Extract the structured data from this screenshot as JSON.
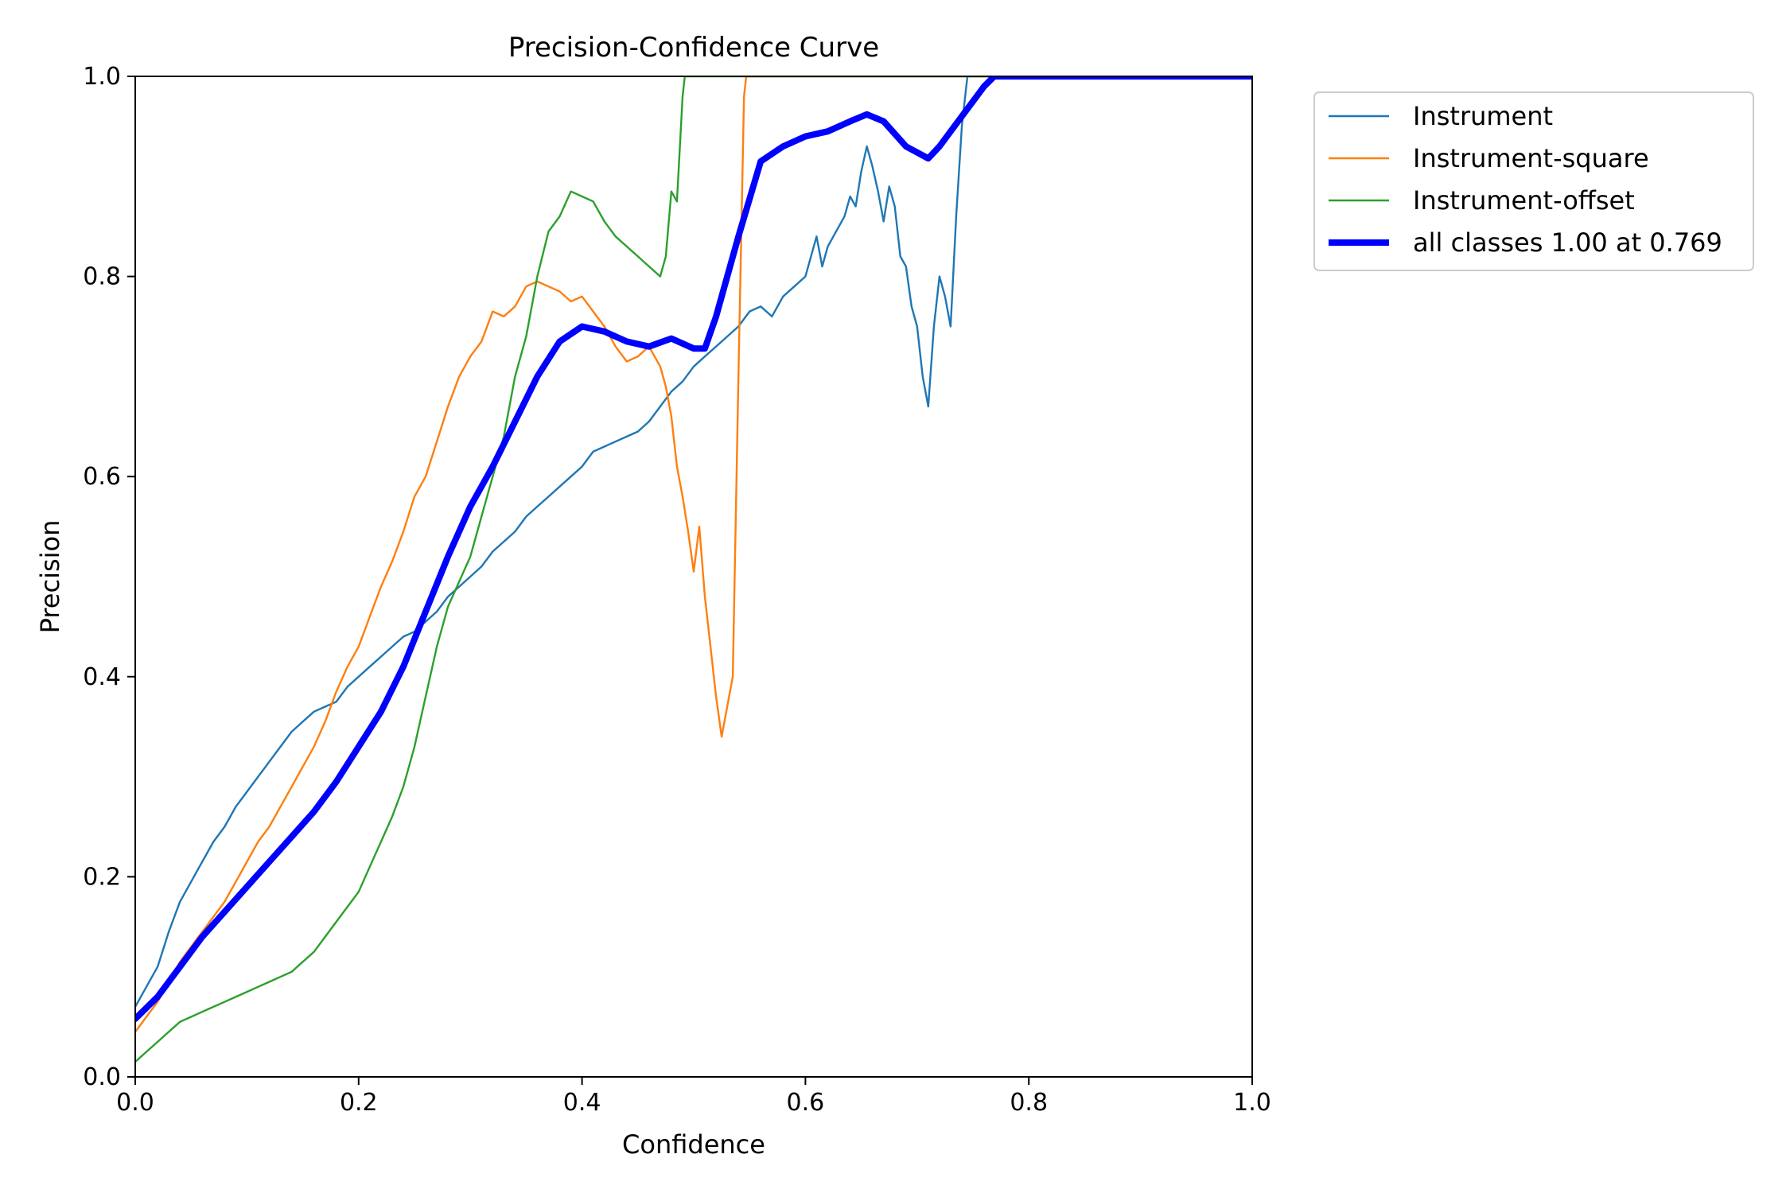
{
  "chart_data": {
    "type": "line",
    "title": "Precision-Confidence Curve",
    "xlabel": "Confidence",
    "ylabel": "Precision",
    "xlim": [
      0.0,
      1.0
    ],
    "ylim": [
      0.0,
      1.0
    ],
    "x_ticks": [
      "0.0",
      "0.2",
      "0.4",
      "0.6",
      "0.8",
      "1.0"
    ],
    "y_ticks": [
      "0.0",
      "0.2",
      "0.4",
      "0.6",
      "0.8",
      "1.0"
    ],
    "grid": false,
    "legend_position": "outside-right-top",
    "series": [
      {
        "name": "Instrument",
        "color": "#1f77b4",
        "width": "thin",
        "points": [
          [
            0.0,
            0.07
          ],
          [
            0.01,
            0.09
          ],
          [
            0.02,
            0.11
          ],
          [
            0.03,
            0.145
          ],
          [
            0.04,
            0.175
          ],
          [
            0.05,
            0.195
          ],
          [
            0.06,
            0.215
          ],
          [
            0.07,
            0.235
          ],
          [
            0.08,
            0.25
          ],
          [
            0.09,
            0.27
          ],
          [
            0.1,
            0.285
          ],
          [
            0.11,
            0.3
          ],
          [
            0.12,
            0.315
          ],
          [
            0.13,
            0.33
          ],
          [
            0.14,
            0.345
          ],
          [
            0.15,
            0.355
          ],
          [
            0.16,
            0.365
          ],
          [
            0.17,
            0.37
          ],
          [
            0.18,
            0.375
          ],
          [
            0.19,
            0.39
          ],
          [
            0.2,
            0.4
          ],
          [
            0.21,
            0.41
          ],
          [
            0.22,
            0.42
          ],
          [
            0.23,
            0.43
          ],
          [
            0.24,
            0.44
          ],
          [
            0.25,
            0.445
          ],
          [
            0.26,
            0.455
          ],
          [
            0.27,
            0.465
          ],
          [
            0.28,
            0.48
          ],
          [
            0.29,
            0.49
          ],
          [
            0.3,
            0.5
          ],
          [
            0.31,
            0.51
          ],
          [
            0.32,
            0.525
          ],
          [
            0.33,
            0.535
          ],
          [
            0.34,
            0.545
          ],
          [
            0.35,
            0.56
          ],
          [
            0.36,
            0.57
          ],
          [
            0.37,
            0.58
          ],
          [
            0.38,
            0.59
          ],
          [
            0.39,
            0.6
          ],
          [
            0.4,
            0.61
          ],
          [
            0.41,
            0.625
          ],
          [
            0.42,
            0.63
          ],
          [
            0.43,
            0.635
          ],
          [
            0.44,
            0.64
          ],
          [
            0.45,
            0.645
          ],
          [
            0.46,
            0.655
          ],
          [
            0.47,
            0.67
          ],
          [
            0.48,
            0.685
          ],
          [
            0.49,
            0.695
          ],
          [
            0.5,
            0.71
          ],
          [
            0.51,
            0.72
          ],
          [
            0.52,
            0.73
          ],
          [
            0.53,
            0.74
          ],
          [
            0.54,
            0.75
          ],
          [
            0.55,
            0.765
          ],
          [
            0.56,
            0.77
          ],
          [
            0.57,
            0.76
          ],
          [
            0.58,
            0.78
          ],
          [
            0.59,
            0.79
          ],
          [
            0.6,
            0.8
          ],
          [
            0.605,
            0.82
          ],
          [
            0.61,
            0.84
          ],
          [
            0.615,
            0.81
          ],
          [
            0.62,
            0.83
          ],
          [
            0.63,
            0.85
          ],
          [
            0.635,
            0.86
          ],
          [
            0.64,
            0.88
          ],
          [
            0.645,
            0.87
          ],
          [
            0.65,
            0.905
          ],
          [
            0.655,
            0.93
          ],
          [
            0.66,
            0.91
          ],
          [
            0.665,
            0.885
          ],
          [
            0.67,
            0.855
          ],
          [
            0.675,
            0.89
          ],
          [
            0.68,
            0.87
          ],
          [
            0.685,
            0.82
          ],
          [
            0.69,
            0.81
          ],
          [
            0.695,
            0.77
          ],
          [
            0.7,
            0.75
          ],
          [
            0.705,
            0.7
          ],
          [
            0.71,
            0.67
          ],
          [
            0.715,
            0.75
          ],
          [
            0.72,
            0.8
          ],
          [
            0.725,
            0.78
          ],
          [
            0.73,
            0.75
          ],
          [
            0.735,
            0.86
          ],
          [
            0.74,
            0.95
          ],
          [
            0.745,
            1.0
          ],
          [
            1.0,
            1.0
          ]
        ]
      },
      {
        "name": "Instrument-square",
        "color": "#ff7f0e",
        "width": "thin",
        "points": [
          [
            0.0,
            0.045
          ],
          [
            0.01,
            0.06
          ],
          [
            0.02,
            0.075
          ],
          [
            0.03,
            0.095
          ],
          [
            0.04,
            0.115
          ],
          [
            0.05,
            0.13
          ],
          [
            0.06,
            0.145
          ],
          [
            0.07,
            0.16
          ],
          [
            0.08,
            0.175
          ],
          [
            0.09,
            0.195
          ],
          [
            0.1,
            0.215
          ],
          [
            0.11,
            0.235
          ],
          [
            0.12,
            0.25
          ],
          [
            0.13,
            0.27
          ],
          [
            0.14,
            0.29
          ],
          [
            0.15,
            0.31
          ],
          [
            0.16,
            0.33
          ],
          [
            0.17,
            0.355
          ],
          [
            0.18,
            0.385
          ],
          [
            0.19,
            0.41
          ],
          [
            0.2,
            0.43
          ],
          [
            0.21,
            0.46
          ],
          [
            0.22,
            0.49
          ],
          [
            0.23,
            0.515
          ],
          [
            0.24,
            0.545
          ],
          [
            0.25,
            0.58
          ],
          [
            0.26,
            0.6
          ],
          [
            0.27,
            0.635
          ],
          [
            0.28,
            0.67
          ],
          [
            0.29,
            0.7
          ],
          [
            0.3,
            0.72
          ],
          [
            0.31,
            0.735
          ],
          [
            0.32,
            0.765
          ],
          [
            0.33,
            0.76
          ],
          [
            0.34,
            0.77
          ],
          [
            0.35,
            0.79
          ],
          [
            0.36,
            0.795
          ],
          [
            0.37,
            0.79
          ],
          [
            0.38,
            0.785
          ],
          [
            0.39,
            0.775
          ],
          [
            0.4,
            0.78
          ],
          [
            0.41,
            0.765
          ],
          [
            0.42,
            0.75
          ],
          [
            0.43,
            0.73
          ],
          [
            0.44,
            0.715
          ],
          [
            0.45,
            0.72
          ],
          [
            0.46,
            0.73
          ],
          [
            0.47,
            0.71
          ],
          [
            0.475,
            0.69
          ],
          [
            0.48,
            0.66
          ],
          [
            0.485,
            0.61
          ],
          [
            0.49,
            0.58
          ],
          [
            0.495,
            0.545
          ],
          [
            0.5,
            0.505
          ],
          [
            0.505,
            0.55
          ],
          [
            0.51,
            0.48
          ],
          [
            0.515,
            0.43
          ],
          [
            0.52,
            0.38
          ],
          [
            0.525,
            0.34
          ],
          [
            0.53,
            0.37
          ],
          [
            0.535,
            0.4
          ],
          [
            0.54,
            0.7
          ],
          [
            0.545,
            0.98
          ],
          [
            0.547,
            1.0
          ],
          [
            1.0,
            1.0
          ]
        ]
      },
      {
        "name": "Instrument-offset",
        "color": "#2ca02c",
        "width": "thin",
        "points": [
          [
            0.0,
            0.015
          ],
          [
            0.01,
            0.025
          ],
          [
            0.02,
            0.035
          ],
          [
            0.03,
            0.045
          ],
          [
            0.04,
            0.055
          ],
          [
            0.05,
            0.06
          ],
          [
            0.06,
            0.065
          ],
          [
            0.07,
            0.07
          ],
          [
            0.08,
            0.075
          ],
          [
            0.09,
            0.08
          ],
          [
            0.1,
            0.085
          ],
          [
            0.11,
            0.09
          ],
          [
            0.12,
            0.095
          ],
          [
            0.13,
            0.1
          ],
          [
            0.14,
            0.105
          ],
          [
            0.15,
            0.115
          ],
          [
            0.16,
            0.125
          ],
          [
            0.17,
            0.14
          ],
          [
            0.18,
            0.155
          ],
          [
            0.19,
            0.17
          ],
          [
            0.2,
            0.185
          ],
          [
            0.21,
            0.21
          ],
          [
            0.22,
            0.235
          ],
          [
            0.23,
            0.26
          ],
          [
            0.24,
            0.29
          ],
          [
            0.25,
            0.33
          ],
          [
            0.26,
            0.38
          ],
          [
            0.27,
            0.43
          ],
          [
            0.28,
            0.47
          ],
          [
            0.29,
            0.495
          ],
          [
            0.3,
            0.52
          ],
          [
            0.31,
            0.56
          ],
          [
            0.32,
            0.6
          ],
          [
            0.33,
            0.64
          ],
          [
            0.34,
            0.7
          ],
          [
            0.35,
            0.74
          ],
          [
            0.36,
            0.8
          ],
          [
            0.37,
            0.845
          ],
          [
            0.38,
            0.86
          ],
          [
            0.39,
            0.885
          ],
          [
            0.4,
            0.88
          ],
          [
            0.41,
            0.875
          ],
          [
            0.42,
            0.855
          ],
          [
            0.43,
            0.84
          ],
          [
            0.44,
            0.83
          ],
          [
            0.45,
            0.82
          ],
          [
            0.46,
            0.81
          ],
          [
            0.47,
            0.8
          ],
          [
            0.475,
            0.82
          ],
          [
            0.48,
            0.885
          ],
          [
            0.485,
            0.875
          ],
          [
            0.49,
            0.98
          ],
          [
            0.492,
            1.0
          ],
          [
            1.0,
            1.0
          ]
        ]
      },
      {
        "name": "all classes 1.00 at 0.769",
        "color": "#0000ff",
        "width": "thick",
        "points": [
          [
            0.0,
            0.058
          ],
          [
            0.02,
            0.08
          ],
          [
            0.04,
            0.11
          ],
          [
            0.06,
            0.14
          ],
          [
            0.08,
            0.165
          ],
          [
            0.1,
            0.19
          ],
          [
            0.12,
            0.215
          ],
          [
            0.14,
            0.24
          ],
          [
            0.16,
            0.265
          ],
          [
            0.18,
            0.295
          ],
          [
            0.2,
            0.33
          ],
          [
            0.22,
            0.365
          ],
          [
            0.24,
            0.41
          ],
          [
            0.26,
            0.465
          ],
          [
            0.28,
            0.52
          ],
          [
            0.3,
            0.57
          ],
          [
            0.32,
            0.61
          ],
          [
            0.34,
            0.655
          ],
          [
            0.36,
            0.7
          ],
          [
            0.38,
            0.735
          ],
          [
            0.4,
            0.75
          ],
          [
            0.42,
            0.745
          ],
          [
            0.44,
            0.735
          ],
          [
            0.46,
            0.73
          ],
          [
            0.48,
            0.738
          ],
          [
            0.5,
            0.728
          ],
          [
            0.51,
            0.728
          ],
          [
            0.52,
            0.76
          ],
          [
            0.54,
            0.84
          ],
          [
            0.56,
            0.915
          ],
          [
            0.58,
            0.93
          ],
          [
            0.6,
            0.94
          ],
          [
            0.62,
            0.945
          ],
          [
            0.64,
            0.955
          ],
          [
            0.655,
            0.962
          ],
          [
            0.67,
            0.955
          ],
          [
            0.69,
            0.93
          ],
          [
            0.71,
            0.918
          ],
          [
            0.72,
            0.93
          ],
          [
            0.74,
            0.96
          ],
          [
            0.76,
            0.99
          ],
          [
            0.769,
            1.0
          ],
          [
            1.0,
            1.0
          ]
        ]
      }
    ]
  }
}
